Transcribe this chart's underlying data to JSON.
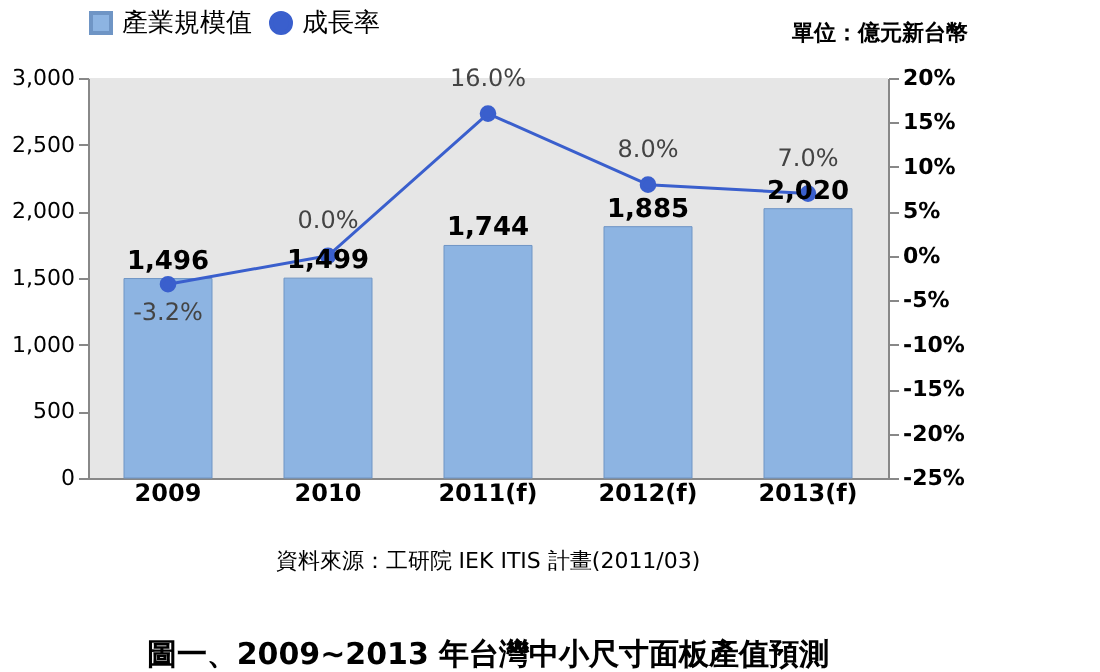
{
  "chart_data": {
    "type": "bar",
    "title": "圖一、2009~2013 年台灣中小尺寸面板產值預測",
    "categories": [
      "2009",
      "2010",
      "2011(f)",
      "2012(f)",
      "2013(f)"
    ],
    "series": [
      {
        "name": "產業規模值",
        "color": "#8db4e2",
        "values": [
          1496,
          1499,
          1744,
          1885,
          2020
        ],
        "value_labels": [
          "1,496",
          "1,499",
          "1,744",
          "1,885",
          "2,020"
        ]
      },
      {
        "name": "成長率",
        "type": "line",
        "axis": "y2",
        "color": "#3a5fcd",
        "values": [
          -3.2,
          0.0,
          16.0,
          8.0,
          7.0
        ],
        "value_labels": [
          "-3.2%",
          "0.0%",
          "16.0%",
          "8.0%",
          "7.0%"
        ]
      }
    ],
    "ylim": [
      0,
      3000
    ],
    "yticks": [
      0,
      {
        "value": 500,
        "label": "500"
      },
      {
        "value": 1000,
        "label": "1,000"
      },
      {
        "value": 1500,
        "label": "1,500"
      },
      {
        "value": 2000,
        "label": "2,000"
      },
      {
        "value": 2500,
        "label": "2,500"
      },
      {
        "value": 3000,
        "label": "3,000"
      }
    ],
    "y2lim": [
      -25,
      20
    ],
    "y2ticks": [
      {
        "value": -25,
        "label": "-25%"
      },
      {
        "value": -20,
        "label": "-20%"
      },
      {
        "value": -15,
        "label": "-15%"
      },
      {
        "value": -10,
        "label": "-10%"
      },
      {
        "value": -5,
        "label": "-5%"
      },
      {
        "value": 0,
        "label": "0%"
      },
      {
        "value": 5,
        "label": "5%"
      },
      {
        "value": 10,
        "label": "10%"
      },
      {
        "value": 15,
        "label": "15%"
      },
      {
        "value": 20,
        "label": "20%"
      }
    ],
    "annotations": [
      "單位：億元新台幣",
      "資料來源：工研院 IEK ITIS 計畫(2011/03)"
    ],
    "legend": "top left",
    "marker": "circle",
    "grid": false
  }
}
